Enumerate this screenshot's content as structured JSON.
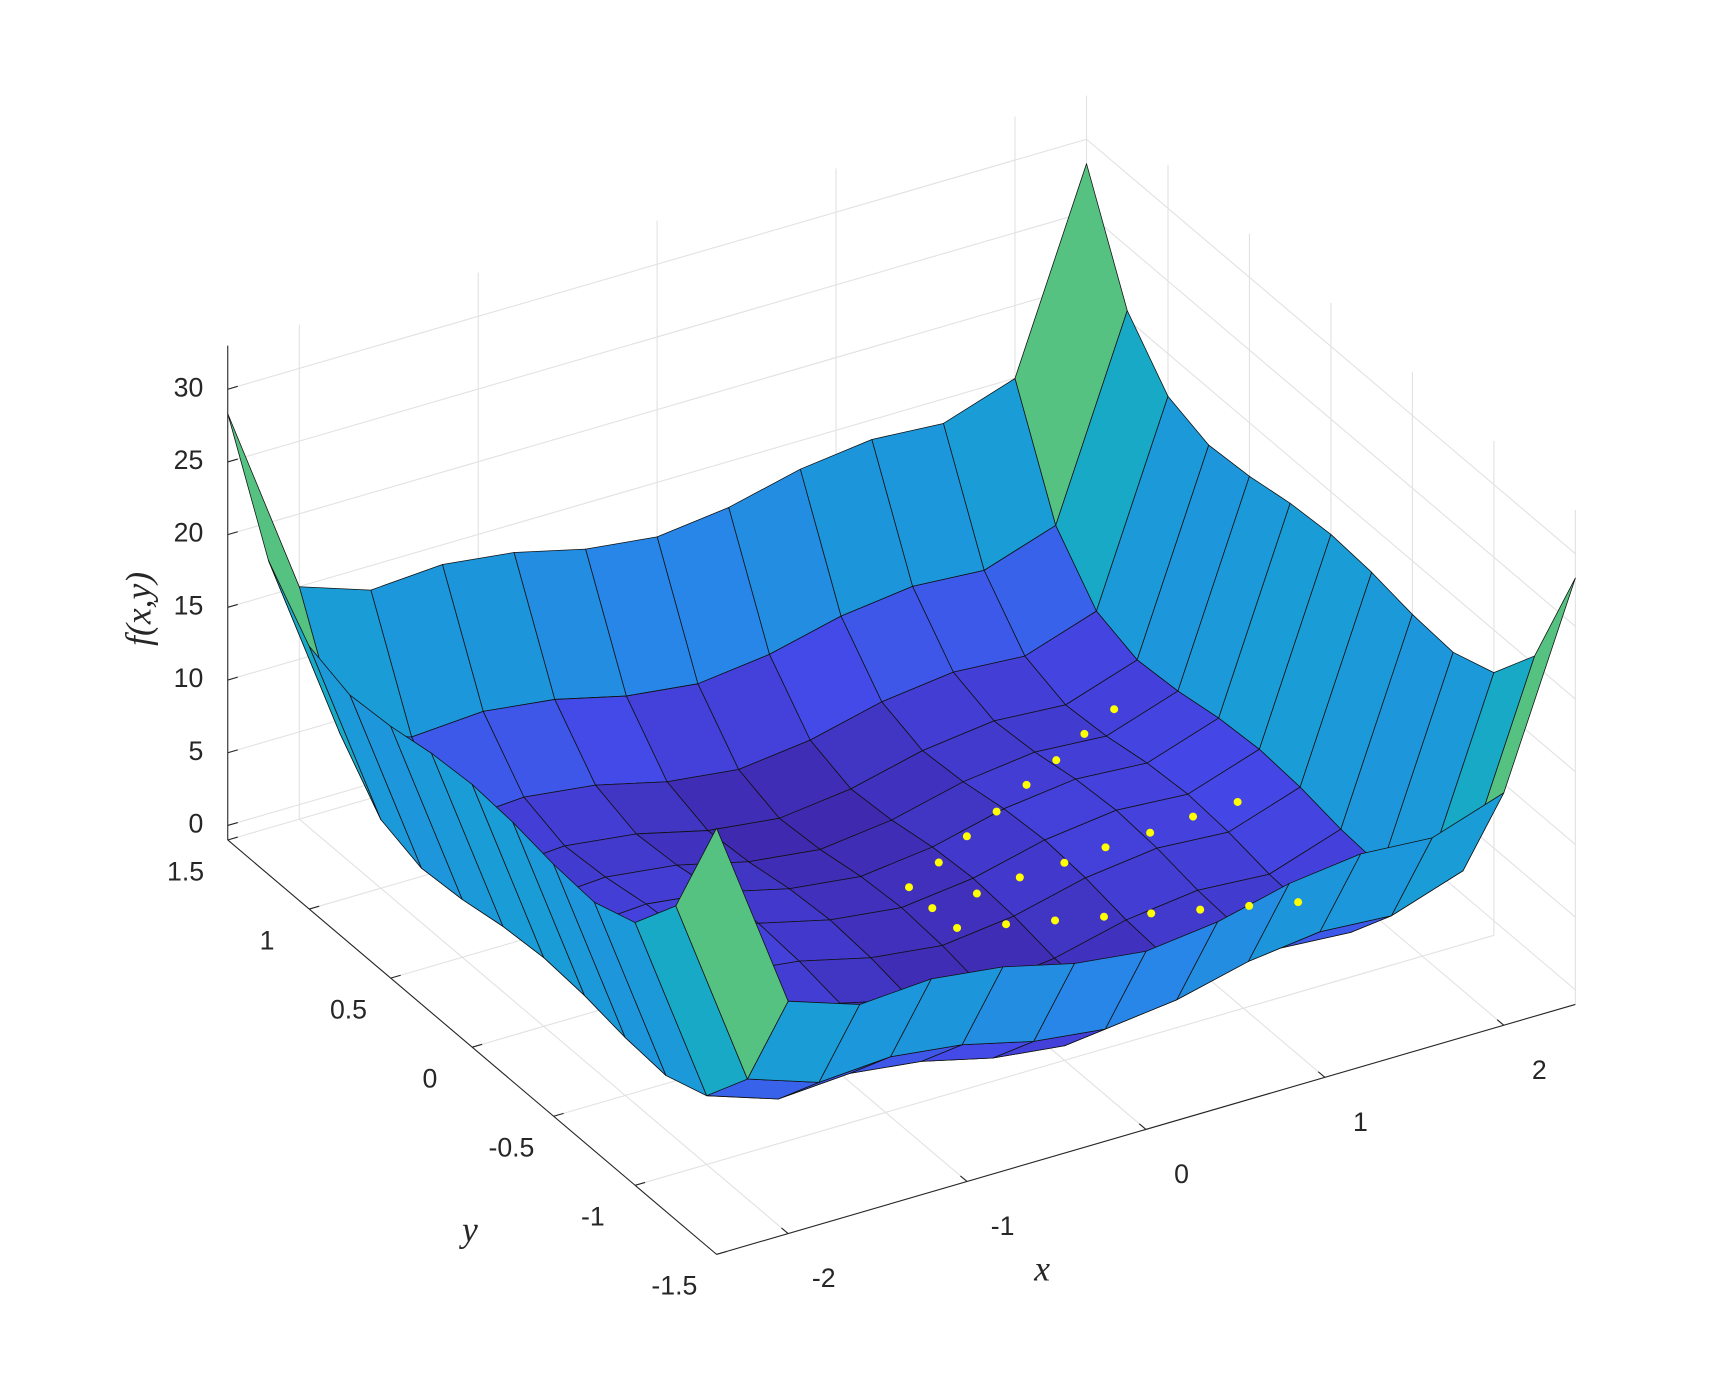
{
  "chart_data": {
    "type": "surface",
    "x_label": "x",
    "y_label": "y",
    "z_label": "f(x,y)",
    "x": [
      -2.4,
      -2.0,
      -1.6,
      -1.2,
      -0.8,
      -0.4,
      0,
      0.4,
      0.8,
      1.2,
      1.6,
      2.0,
      2.4
    ],
    "y": [
      -1.5,
      -1.25,
      -1.0,
      -0.75,
      -0.5,
      -0.25,
      0,
      0.25,
      0.5,
      0.75,
      1.0,
      1.25,
      1.5
    ],
    "z": [
      [
        28.32,
        14.98,
        13.32,
        13.65,
        13.04,
        11.84,
        11.25,
        11.84,
        13.04,
        13.65,
        13.32,
        14.98,
        28.32
      ],
      [
        20.59,
        7.25,
        5.59,
        5.92,
        5.31,
        4.11,
        3.52,
        4.11,
        5.31,
        5.92,
        5.59,
        7.25,
        20.59
      ],
      [
        17.07,
        3.73,
        2.07,
        2.4,
        1.79,
        0.59,
        0,
        0.59,
        1.79,
        2.4,
        2.07,
        3.73,
        17.07
      ],
      [
        16.09,
        2.75,
        1.09,
        1.42,
        0.81,
        -0.39,
        -0.98,
        -0.39,
        0.81,
        1.42,
        1.09,
        2.75,
        16.09
      ],
      [
        16.32,
        2.98,
        1.32,
        1.65,
        1.04,
        -0.16,
        -0.75,
        -0.16,
        1.04,
        1.65,
        1.32,
        2.98,
        16.32
      ],
      [
        16.84,
        3.5,
        1.84,
        2.17,
        1.56,
        0.36,
        -0.23,
        0.36,
        1.56,
        2.17,
        1.84,
        3.5,
        16.84
      ],
      [
        17.07,
        3.73,
        2.07,
        2.4,
        1.79,
        0.59,
        0,
        0.59,
        1.79,
        2.4,
        2.07,
        3.73,
        17.07
      ],
      [
        16.84,
        3.5,
        1.84,
        2.17,
        1.56,
        0.36,
        -0.23,
        0.36,
        1.56,
        2.17,
        1.84,
        3.5,
        16.84
      ],
      [
        16.32,
        2.98,
        1.32,
        1.65,
        1.04,
        -0.16,
        -0.75,
        -0.16,
        1.04,
        1.65,
        1.32,
        2.98,
        16.32
      ],
      [
        16.09,
        2.75,
        1.09,
        1.42,
        0.81,
        -0.39,
        -0.98,
        -0.39,
        0.81,
        1.42,
        1.09,
        2.75,
        16.09
      ],
      [
        17.07,
        3.73,
        2.07,
        2.4,
        1.79,
        0.59,
        0,
        0.59,
        1.79,
        2.4,
        2.07,
        3.73,
        17.07
      ],
      [
        20.59,
        7.25,
        5.59,
        5.92,
        5.31,
        4.11,
        3.52,
        4.11,
        5.31,
        5.92,
        5.59,
        7.25,
        20.59
      ],
      [
        28.32,
        14.98,
        13.32,
        13.65,
        13.04,
        11.84,
        11.25,
        11.84,
        13.04,
        13.65,
        13.32,
        14.98,
        28.32
      ]
    ],
    "xlim": [
      -2.4,
      2.4
    ],
    "ylim": [
      -1.5,
      1.5
    ],
    "zlim": [
      -1,
      33
    ],
    "xticks": [
      -2,
      -1,
      0,
      1,
      2
    ],
    "yticks": [
      -1.5,
      -1,
      -0.5,
      0,
      0.5,
      1,
      1.5
    ],
    "zticks": [
      0,
      5,
      10,
      15,
      20,
      25,
      30
    ],
    "grid": true,
    "colormap": [
      "#3e26a8",
      "#4546e6",
      "#2f7af0",
      "#1a9ad8",
      "#15b4b8",
      "#4bc28a",
      "#a5c34a",
      "#efb838",
      "#f9fb0e"
    ],
    "points": {
      "color": "#ffff00",
      "x": [
        0.06,
        0.29,
        0.52,
        0.75,
        0.99,
        1.22,
        1.45,
        1.68,
        0.09,
        0.33,
        0.57,
        0.81,
        1.04,
        1.28,
        1.52,
        1.76,
        0.11,
        0.32,
        0.53,
        0.74,
        0.94,
        1.15,
        1.36,
        1.57
      ],
      "y": [
        0.02,
        0.09,
        0.17,
        0.24,
        0.32,
        0.39,
        0.47,
        0.54,
        -0.09,
        -0.1,
        -0.1,
        -0.11,
        -0.11,
        -0.12,
        -0.12,
        -0.13,
        -0.22,
        -0.29,
        -0.36,
        -0.43,
        -0.5,
        -0.57,
        -0.64,
        -0.71
      ],
      "z": [
        1.0,
        1.21,
        1.43,
        1.64,
        1.86,
        2.07,
        2.29,
        2.5,
        0.5,
        0.74,
        0.99,
        1.23,
        1.47,
        1.71,
        1.96,
        2.2,
        0.3,
        0.47,
        0.64,
        0.81,
        0.99,
        1.16,
        1.33,
        1.5
      ]
    }
  }
}
